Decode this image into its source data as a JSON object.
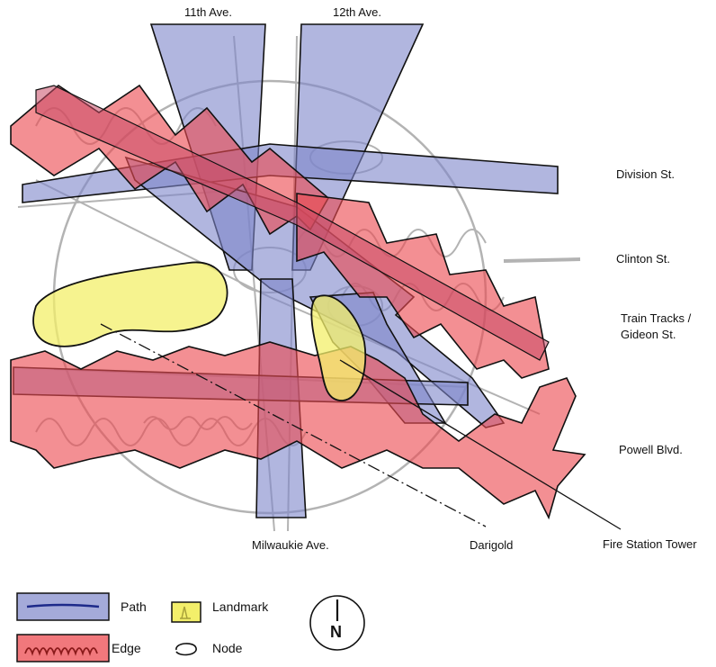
{
  "labels": {
    "street_11th": "11th Ave.",
    "street_12th": "12th Ave.",
    "division": "Division St.",
    "clinton": "Clinton St.",
    "train_tracks": "Train Tracks  /",
    "gideon": "Gideon St.",
    "powell": "Powell Blvd.",
    "milwaukie": "Milwaukie Ave.",
    "darigold": "Darigold",
    "fire_station": "Fire Station Tower"
  },
  "legend": {
    "path": "Path",
    "landmark": "Landmark",
    "edge": "Edge",
    "node": "Node"
  },
  "compass": {
    "letter": "N"
  },
  "colors": {
    "path": "#7d86c9",
    "edge": "#ec4b50",
    "landmark": "#f3ef6a",
    "sketch": "#8a8a8a"
  }
}
